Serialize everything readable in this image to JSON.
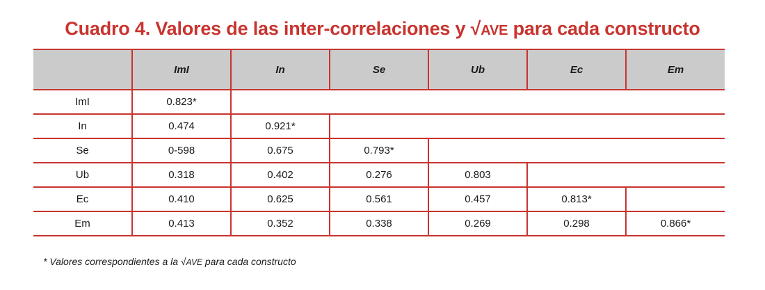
{
  "title": {
    "prefix": "Cuadro 4. Valores de las inter-correlaciones y √",
    "acronym": "AVE",
    "suffix": " para cada constructo"
  },
  "columns": [
    "",
    "ImI",
    "In",
    "Se",
    "Ub",
    "Ec",
    "Em"
  ],
  "rows": [
    {
      "label": "ImI",
      "values": [
        "0.823*"
      ]
    },
    {
      "label": "In",
      "values": [
        "0.474",
        "0.921*"
      ]
    },
    {
      "label": "Se",
      "values": [
        "0-598",
        "0.675",
        "0.793*"
      ]
    },
    {
      "label": "Ub",
      "values": [
        "0.318",
        "0.402",
        "0.276",
        "0.803"
      ]
    },
    {
      "label": "Ec",
      "values": [
        "0.410",
        "0.625",
        "0.561",
        "0.457",
        "0.813*"
      ]
    },
    {
      "label": "Em",
      "values": [
        "0.413",
        "0.352",
        "0.338",
        "0.269",
        "0.298",
        "0.866*"
      ]
    }
  ],
  "footnote": {
    "prefix": "* Valores correspondientes a la √",
    "acronym": "AVE",
    "suffix": " para cada constructo"
  },
  "colors": {
    "accent": "#c8342f",
    "header_bg": "#cbcbcb"
  }
}
